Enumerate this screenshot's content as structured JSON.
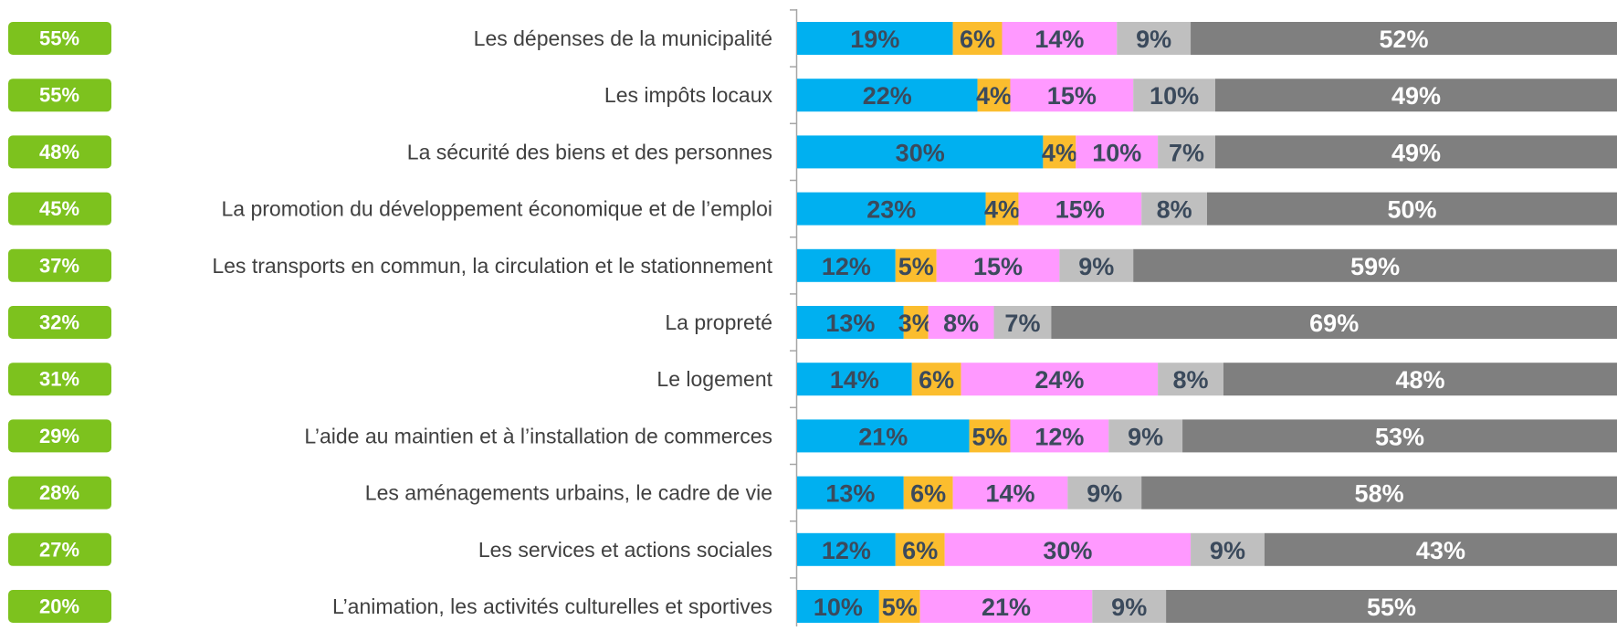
{
  "chart_data": {
    "type": "stacked-barh",
    "categories": [
      "Les dépenses de la municipalité",
      "Les impôts locaux",
      "La sécurité des biens et des personnes",
      "La promotion du développement économique et de l’emploi",
      "Les transports en commun, la circulation et le stationnement",
      "La propreté",
      "Le logement",
      "L’aide au maintien et à l’installation de commerces",
      "Les aménagements urbains, le cadre de vie",
      "Les services et actions sociales",
      "L’animation, les activités culturelles et sportives"
    ],
    "xlim": [
      0,
      100
    ],
    "series": [
      {
        "color": "#00b0f0",
        "label_color": "#3b4a5c",
        "values": [
          19,
          22,
          30,
          23,
          12,
          13,
          14,
          21,
          13,
          12,
          10
        ],
        "value_labels": [
          "19%",
          "22%",
          "30%",
          "23%",
          "12%",
          "13%",
          "14%",
          "21%",
          "13%",
          "12%",
          "10%"
        ]
      },
      {
        "color": "#fbbd2e",
        "label_color": "#3b4a5c",
        "values": [
          6,
          4,
          4,
          4,
          5,
          3,
          6,
          5,
          6,
          6,
          5
        ],
        "value_labels": [
          "6%",
          "4%",
          "4%",
          "4%",
          "5%",
          "3%",
          "6%",
          "5%",
          "6%",
          "6%",
          "5%"
        ]
      },
      {
        "color": "#ff99ff",
        "label_color": "#3b4a5c",
        "values": [
          14,
          15,
          10,
          15,
          15,
          8,
          24,
          12,
          14,
          30,
          21
        ],
        "value_labels": [
          "14%",
          "15%",
          "10%",
          "15%",
          "15%",
          "8%",
          "24%",
          "12%",
          "14%",
          "30%",
          "21%"
        ]
      },
      {
        "color": "#bfbfbf",
        "label_color": "#3b4a5c",
        "values": [
          9,
          10,
          7,
          8,
          9,
          7,
          8,
          9,
          9,
          9,
          9
        ],
        "value_labels": [
          "9%",
          "10%",
          "7%",
          "8%",
          "9%",
          "7%",
          "8%",
          "9%",
          "9%",
          "9%",
          "9%"
        ]
      },
      {
        "color": "#7f7f7f",
        "label_color": "#ffffff",
        "values": [
          52,
          49,
          49,
          50,
          59,
          69,
          48,
          53,
          58,
          43,
          55
        ],
        "value_labels": [
          "52%",
          "49%",
          "49%",
          "50%",
          "59%",
          "69%",
          "48%",
          "53%",
          "58%",
          "43%",
          "55%"
        ]
      }
    ],
    "totals": {
      "color": "#7dc21e",
      "values": [
        55,
        55,
        48,
        45,
        37,
        32,
        31,
        29,
        28,
        27,
        20
      ],
      "value_labels": [
        "55%",
        "55%",
        "48%",
        "45%",
        "37%",
        "32%",
        "31%",
        "29%",
        "28%",
        "27%",
        "20%"
      ]
    }
  }
}
